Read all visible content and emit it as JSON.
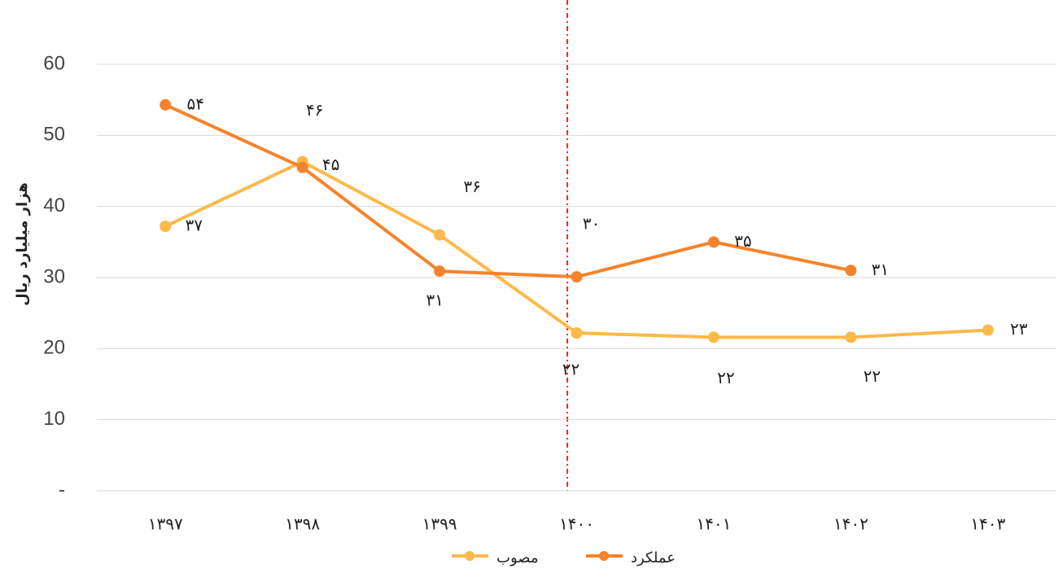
{
  "chart_data": {
    "type": "line",
    "y_label": "هزار میلیارد ریال",
    "categories": [
      "۱۳۹۷",
      "۱۳۹۸",
      "۱۳۹۹",
      "۱۴۰۰",
      "۱۴۰۱",
      "۱۴۰۲",
      "۱۴۰۳"
    ],
    "series": [
      {
        "name": "مصوب",
        "color": "#FDB94A",
        "values": [
          37.2,
          46.3,
          36,
          22.2,
          21.6,
          21.6,
          22.6
        ],
        "value_labels": [
          "۳۷",
          "۴۶",
          "۳۶",
          "۲۲",
          "۲۲",
          "۲۲",
          "۲۳"
        ]
      },
      {
        "name": "عملکرد",
        "color": "#F5832B",
        "values": [
          54.3,
          45.5,
          30.9,
          30.1,
          35.0,
          31.0,
          null
        ],
        "value_labels": [
          "۵۴",
          "۴۵",
          "۳۱",
          "۳۰",
          "۳۵",
          "۳۱",
          null
        ]
      }
    ],
    "ylim": [
      0,
      60
    ],
    "yticks": [
      {
        "value": 0,
        "label": "-"
      },
      10,
      20,
      30,
      40,
      50,
      60
    ],
    "grid": true
  }
}
